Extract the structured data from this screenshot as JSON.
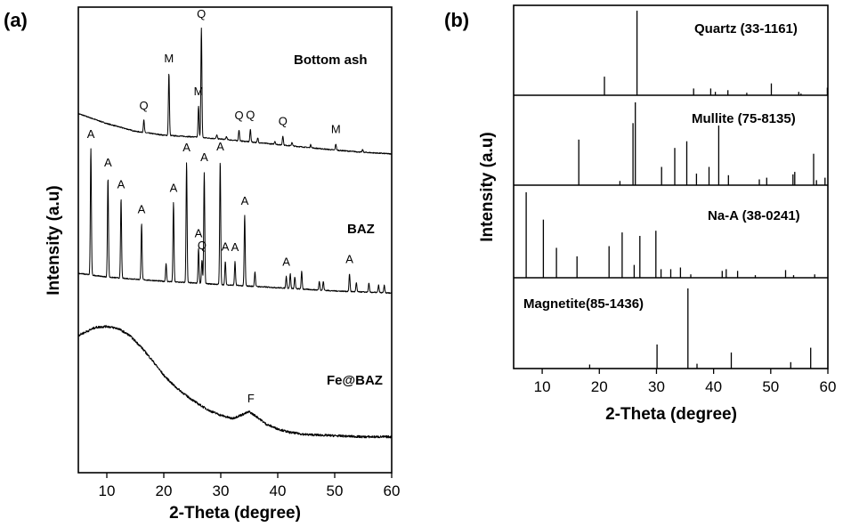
{
  "chart_data": [
    {
      "panel_label": "(a)",
      "type": "line",
      "xlabel": "2-Theta (degree)",
      "ylabel": "Intensity (a.u)",
      "xlim": [
        5,
        60
      ],
      "xticks": [
        10,
        20,
        30,
        40,
        50,
        60
      ],
      "yticks": "none",
      "series": [
        {
          "name": "Bottom ash",
          "baseline": [
            [
              5,
              0.78
            ],
            [
              10,
              0.6
            ],
            [
              15,
              0.46
            ],
            [
              20,
              0.39
            ],
            [
              25,
              0.36
            ],
            [
              30,
              0.32
            ],
            [
              35,
              0.27
            ],
            [
              40,
              0.22
            ],
            [
              45,
              0.17
            ],
            [
              50,
              0.12
            ],
            [
              55,
              0.08
            ],
            [
              60,
              0.05
            ]
          ],
          "peaks": [
            {
              "x": 16.5,
              "h": 0.4,
              "label": "Q"
            },
            {
              "x": 20.9,
              "h": 2.0,
              "label": "M"
            },
            {
              "x": 26.1,
              "h": 1.0,
              "label": "M"
            },
            {
              "x": 26.6,
              "h": 3.5,
              "label": "Q"
            },
            {
              "x": 33.2,
              "h": 0.35,
              "label": "Q"
            },
            {
              "x": 35.2,
              "h": 0.4,
              "label": "Q"
            },
            {
              "x": 40.9,
              "h": 0.3,
              "label": "Q"
            },
            {
              "x": 50.2,
              "h": 0.2,
              "label": "M"
            },
            {
              "x": 29.3,
              "h": 0.12
            },
            {
              "x": 31.0,
              "h": 0.1
            },
            {
              "x": 36.5,
              "h": 0.15
            },
            {
              "x": 39.5,
              "h": 0.1
            },
            {
              "x": 42.5,
              "h": 0.12
            },
            {
              "x": 45.8,
              "h": 0.1
            },
            {
              "x": 54.9,
              "h": 0.08
            }
          ]
        },
        {
          "name": "BAZ",
          "baseline": [
            [
              5,
              0.45
            ],
            [
              10,
              0.38
            ],
            [
              20,
              0.3
            ],
            [
              30,
              0.24
            ],
            [
              40,
              0.18
            ],
            [
              50,
              0.12
            ],
            [
              60,
              0.08
            ]
          ],
          "peaks": [
            {
              "x": 7.2,
              "h": 4.3,
              "label": "A"
            },
            {
              "x": 10.2,
              "h": 3.4,
              "label": "A"
            },
            {
              "x": 12.5,
              "h": 2.7,
              "label": "A"
            },
            {
              "x": 16.1,
              "h": 1.9,
              "label": "A"
            },
            {
              "x": 20.4,
              "h": 0.6
            },
            {
              "x": 21.7,
              "h": 2.7,
              "label": "A"
            },
            {
              "x": 24.0,
              "h": 4.1,
              "label": "A"
            },
            {
              "x": 26.1,
              "h": 1.2,
              "label": "A"
            },
            {
              "x": 26.7,
              "h": 0.8,
              "label": "Q"
            },
            {
              "x": 27.1,
              "h": 3.8,
              "label": "A"
            },
            {
              "x": 29.9,
              "h": 4.2,
              "label": "A"
            },
            {
              "x": 30.8,
              "h": 0.8,
              "label": "A"
            },
            {
              "x": 32.5,
              "h": 0.8,
              "label": "A"
            },
            {
              "x": 34.2,
              "h": 2.4,
              "label": "A"
            },
            {
              "x": 36.0,
              "h": 0.5
            },
            {
              "x": 41.5,
              "h": 0.4,
              "label": "A"
            },
            {
              "x": 42.2,
              "h": 0.5
            },
            {
              "x": 43.0,
              "h": 0.4
            },
            {
              "x": 44.2,
              "h": 0.6
            },
            {
              "x": 47.3,
              "h": 0.3
            },
            {
              "x": 48.0,
              "h": 0.3
            },
            {
              "x": 52.6,
              "h": 0.6,
              "label": "A"
            },
            {
              "x": 53.8,
              "h": 0.3
            },
            {
              "x": 56.0,
              "h": 0.3
            },
            {
              "x": 57.7,
              "h": 0.25
            },
            {
              "x": 58.7,
              "h": 0.25
            }
          ]
        },
        {
          "name": "Fe@BAZ",
          "baseline": [
            [
              5,
              0.9
            ],
            [
              8,
              0.97
            ],
            [
              10,
              0.98
            ],
            [
              12,
              0.96
            ],
            [
              14,
              0.9
            ],
            [
              16,
              0.8
            ],
            [
              18,
              0.68
            ],
            [
              20,
              0.55
            ],
            [
              22,
              0.45
            ],
            [
              24,
              0.37
            ],
            [
              26,
              0.3
            ],
            [
              28,
              0.24
            ],
            [
              30,
              0.2
            ],
            [
              32,
              0.17
            ],
            [
              33.5,
              0.2
            ],
            [
              35,
              0.23
            ],
            [
              36.5,
              0.18
            ],
            [
              38,
              0.12
            ],
            [
              40,
              0.08
            ],
            [
              42,
              0.05
            ],
            [
              45,
              0.03
            ],
            [
              50,
              0.02
            ],
            [
              55,
              0.01
            ],
            [
              60,
              0.01
            ]
          ],
          "peaks": [
            {
              "x": 35.3,
              "h": 0.0,
              "label": "F"
            }
          ]
        }
      ]
    },
    {
      "panel_label": "(b)",
      "type": "bar",
      "xlabel": "2-Theta (degree)",
      "ylabel": "Intensity (a.u)",
      "xlim": [
        5,
        60
      ],
      "xticks": [
        10,
        20,
        30,
        40,
        50,
        60
      ],
      "series": [
        {
          "name": "Quartz (33-1161)",
          "x": [
            20.9,
            26.6,
            36.5,
            39.5,
            40.3,
            42.5,
            45.8,
            50.1,
            54.9,
            55.3,
            59.9
          ],
          "y": [
            22,
            100,
            8,
            8,
            4,
            6,
            3,
            14,
            4,
            2,
            9
          ]
        },
        {
          "name": "Mullite (75-8135)",
          "x": [
            16.4,
            23.6,
            25.9,
            26.3,
            30.9,
            33.2,
            35.3,
            37.0,
            39.2,
            40.9,
            42.6,
            48.0,
            49.3,
            53.9,
            54.2,
            57.5,
            58.0,
            59.5
          ],
          "y": [
            55,
            5,
            75,
            100,
            22,
            45,
            53,
            14,
            22,
            72,
            12,
            7,
            9,
            13,
            16,
            38,
            6,
            9
          ]
        },
        {
          "name": "Na-A (38-0241)",
          "x": [
            7.2,
            10.2,
            12.5,
            16.1,
            21.7,
            24.0,
            26.1,
            27.1,
            29.9,
            30.8,
            32.5,
            34.2,
            36.0,
            41.5,
            42.2,
            44.2,
            47.3,
            52.6,
            54.0,
            57.7
          ],
          "y": [
            100,
            68,
            35,
            25,
            37,
            53,
            15,
            49,
            55,
            10,
            10,
            12,
            4,
            8,
            10,
            8,
            3,
            9,
            3,
            4
          ]
        },
        {
          "name": "Magnetite(85-1436)",
          "x": [
            18.3,
            30.1,
            35.5,
            37.1,
            43.1,
            53.5,
            57.0,
            62.6
          ],
          "y": [
            5,
            30,
            100,
            6,
            20,
            8,
            26,
            40
          ]
        }
      ]
    }
  ]
}
